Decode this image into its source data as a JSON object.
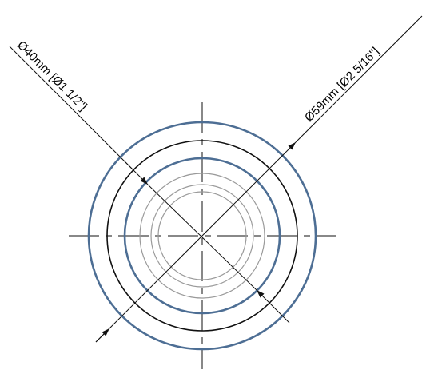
{
  "drawing": {
    "dimension_outer_label": "Ø59mm [Ø2 5/16\"]",
    "dimension_inner_label": "Ø40mm [Ø1 1/2\"]",
    "colors": {
      "outline_blue": "#4d6e94",
      "outline_black": "#111111",
      "hidden_gray": "#9a9a9a",
      "centerline": "#111111"
    }
  }
}
